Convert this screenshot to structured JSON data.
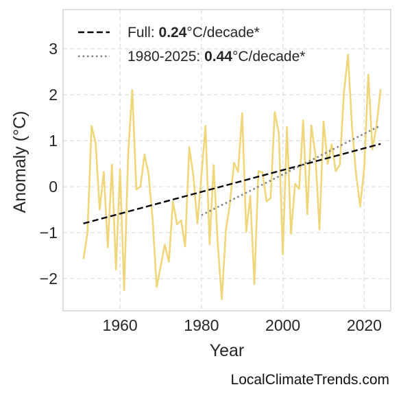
{
  "chart_data": {
    "type": "line",
    "xlabel": "Year",
    "ylabel": "Anomaly (°C)",
    "xlim": [
      1946,
      2026.5
    ],
    "ylim": [
      -2.7,
      3.85
    ],
    "xticks": [
      1960,
      1980,
      2000,
      2020
    ],
    "yticks": [
      -2,
      -1,
      0,
      1,
      2,
      3
    ],
    "ytick_labels": [
      "−2",
      "−1",
      "0",
      "1",
      "2",
      "3"
    ],
    "grid": true,
    "legend_position": "top-left",
    "series": [
      {
        "style": "solid",
        "color": "#f0d67a",
        "x": [
          1951,
          1952,
          1953,
          1954,
          1955,
          1956,
          1957,
          1958,
          1959,
          1960,
          1961,
          1962,
          1963,
          1964,
          1965,
          1966,
          1967,
          1968,
          1969,
          1970,
          1971,
          1972,
          1973,
          1974,
          1975,
          1976,
          1977,
          1978,
          1979,
          1980,
          1981,
          1982,
          1983,
          1984,
          1985,
          1986,
          1987,
          1988,
          1989,
          1990,
          1991,
          1992,
          1993,
          1994,
          1995,
          1996,
          1997,
          1998,
          1999,
          2000,
          2001,
          2002,
          2003,
          2004,
          2005,
          2006,
          2007,
          2008,
          2009,
          2010,
          2011,
          2012,
          2013,
          2014,
          2015,
          2016,
          2017,
          2018,
          2019,
          2020,
          2021,
          2022,
          2023,
          2024
        ],
        "y": [
          -1.57,
          -1.0,
          1.32,
          0.95,
          -0.5,
          0.32,
          -1.32,
          0.48,
          -1.8,
          0.38,
          -2.25,
          0.71,
          2.1,
          -0.06,
          0.0,
          0.7,
          0.28,
          -0.7,
          -2.18,
          -1.72,
          -1.26,
          -1.63,
          -0.32,
          -0.82,
          -0.73,
          -1.3,
          0.86,
          0.25,
          -0.8,
          0.25,
          1.32,
          -1.25,
          0.47,
          -1.22,
          -2.45,
          -0.95,
          -0.36,
          0.52,
          0.32,
          1.6,
          -0.98,
          -0.2,
          -2.12,
          0.34,
          0.31,
          -0.32,
          -0.25,
          1.62,
          1.17,
          -1.47,
          1.3,
          -1.02,
          0.06,
          -0.05,
          1.44,
          -0.6,
          1.33,
          0.7,
          -0.93,
          1.42,
          0.49,
          0.92,
          0.34,
          0.48,
          2.04,
          2.87,
          1.27,
          0.26,
          -0.43,
          0.42,
          2.44,
          0.81,
          1.32,
          2.12
        ]
      },
      {
        "name": "Full",
        "style": "dashed",
        "color": "#000000",
        "x": [
          1951,
          2024
        ],
        "y": [
          -0.8,
          0.93
        ]
      },
      {
        "name": "1980-2025",
        "style": "dotted",
        "color": "#808080",
        "x": [
          1980,
          2024
        ],
        "y": [
          -0.62,
          1.33
        ]
      }
    ],
    "legend": [
      {
        "prefix": "Full: ",
        "value": "0.24",
        "suffix": "°C/decade*",
        "style": "dashed",
        "color": "#000000"
      },
      {
        "prefix": "1980-2025: ",
        "value": "0.44",
        "suffix": "°C/decade*",
        "style": "dotted",
        "color": "#808080"
      }
    ]
  },
  "credit": "LocalClimateTrends.com"
}
